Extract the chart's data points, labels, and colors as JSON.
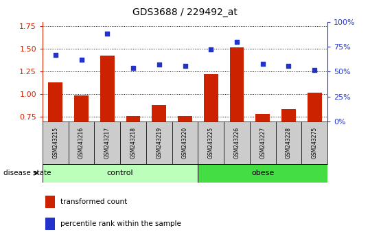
{
  "title": "GDS3688 / 229492_at",
  "samples": [
    "GSM243215",
    "GSM243216",
    "GSM243217",
    "GSM243218",
    "GSM243219",
    "GSM243220",
    "GSM243225",
    "GSM243226",
    "GSM243227",
    "GSM243228",
    "GSM243275"
  ],
  "transformed_count": [
    1.13,
    0.99,
    1.43,
    0.76,
    0.88,
    0.76,
    1.22,
    1.52,
    0.78,
    0.84,
    1.02
  ],
  "percentile_rank": [
    67,
    62,
    88,
    54,
    57,
    56,
    72,
    80,
    58,
    56,
    52
  ],
  "control_indices": [
    0,
    1,
    2,
    3,
    4,
    5
  ],
  "obese_indices": [
    6,
    7,
    8,
    9,
    10
  ],
  "ylim_left": [
    0.7,
    1.8
  ],
  "ylim_right": [
    0,
    100
  ],
  "yticks_left": [
    0.75,
    1.0,
    1.25,
    1.5,
    1.75
  ],
  "yticks_right": [
    0,
    25,
    50,
    75,
    100
  ],
  "bar_color": "#cc2200",
  "dot_color": "#2233cc",
  "control_color": "#bbffbb",
  "obese_color": "#44dd44",
  "tick_area_color": "#cccccc",
  "left_axis_color": "#cc2200",
  "right_axis_color": "#2233cc",
  "legend_bar_label": "transformed count",
  "legend_dot_label": "percentile rank within the sample",
  "group_label": "disease state",
  "control_label": "control",
  "obese_label": "obese"
}
